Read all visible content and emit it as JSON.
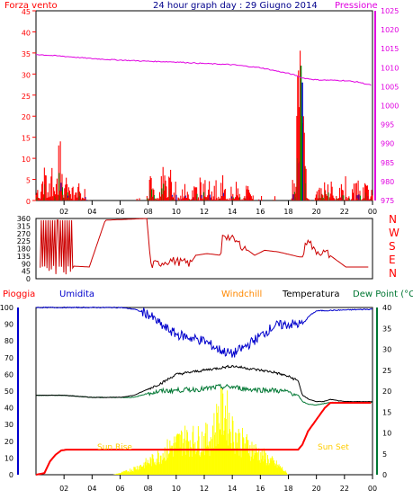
{
  "chart_data": [
    {
      "type": "line",
      "title": "24 hour graph day : 29 Giugno 2014",
      "ylabel_left": "Forza vento",
      "ylabel_right": "Pressione",
      "ylim_left": [
        0,
        45
      ],
      "yticks_left": [
        "0",
        "5",
        "10",
        "15",
        "20",
        "25",
        "30",
        "35",
        "40",
        "45"
      ],
      "ylim_right": [
        975,
        1025
      ],
      "yticks_right": [
        "975",
        "980",
        "985",
        "990",
        "995",
        "1000",
        "1005",
        "1010",
        "1015",
        "1020",
        "1025"
      ],
      "xticks": [
        "02",
        "04",
        "06",
        "08",
        "10",
        "12",
        "14",
        "16",
        "18",
        "20",
        "22",
        "00"
      ],
      "colors": {
        "wind": "#ff0000",
        "gust": "#0000cc",
        "wind2": "#008800",
        "pressure": "#e000e0"
      },
      "series": [
        {
          "name": "Pressione",
          "x": [
            0,
            2,
            4,
            6,
            8,
            10,
            12,
            14,
            16,
            18,
            18.5,
            19,
            20,
            22,
            23,
            24
          ],
          "y": [
            1013.5,
            1013,
            1012.4,
            1012,
            1011.7,
            1011.5,
            1011.1,
            1010.8,
            1010,
            1008.5,
            1008,
            1007.3,
            1006.8,
            1006.6,
            1006.2,
            1005.3
          ]
        },
        {
          "name": "Forza vento",
          "x": [
            0.2,
            0.6,
            1.1,
            1.7,
            2.2,
            3,
            4.1,
            5.5,
            8.2,
            9.1,
            9.6,
            10.6,
            11.3,
            13.3,
            14.3,
            15.1,
            18.7,
            18.85,
            19.0,
            19.1,
            20.2,
            21.7,
            23.5
          ],
          "y": [
            4,
            11,
            9,
            20,
            7,
            5,
            6,
            3,
            7,
            14,
            9,
            6,
            6,
            7,
            7,
            5,
            35,
            42,
            29,
            15,
            5,
            6,
            6
          ]
        }
      ]
    },
    {
      "type": "line",
      "ylabel_right": [
        "N",
        "W",
        "S",
        "E",
        "N"
      ],
      "ylim": [
        0,
        360
      ],
      "yticks_left": [
        "0",
        "45",
        "90",
        "135",
        "180",
        "225",
        "270",
        "315",
        "360"
      ],
      "color": "#cc0000",
      "series": [
        {
          "name": "direction",
          "x": [
            0.3,
            0.9,
            1.3,
            1.8,
            2.2,
            2.7,
            3.8,
            4.9,
            5.0,
            7.9,
            8.2,
            9.6,
            11.0,
            11.4,
            12.2,
            13.2,
            13.3,
            14.3,
            15.6,
            16.3,
            17.3,
            18.8,
            19.0,
            19.4,
            19.8,
            20.8,
            22.1,
            23.8
          ],
          "y": [
            300,
            180,
            350,
            200,
            330,
            75,
            70,
            340,
            350,
            360,
            80,
            110,
            90,
            140,
            150,
            140,
            270,
            220,
            140,
            170,
            160,
            130,
            130,
            250,
            170,
            150,
            70,
            70
          ]
        }
      ]
    },
    {
      "type": "line",
      "legend": [
        "Pioggia",
        "Umidita",
        "Windchill",
        "Temperatura",
        "Dew Point (°C"
      ],
      "ylim_left": [
        0,
        100
      ],
      "yticks_left": [
        "0",
        "10",
        "20",
        "30",
        "40",
        "50",
        "60",
        "70",
        "80",
        "90",
        "100"
      ],
      "ylim_right": [
        0,
        40
      ],
      "yticks_right": [
        "0",
        "5",
        "10",
        "15",
        "20",
        "25",
        "30",
        "35",
        "40"
      ],
      "annotations": [
        "Sun Rise",
        "Sun Set"
      ],
      "colors": {
        "humidity": "#0000cc",
        "temperature": "#000000",
        "dewpoint": "#007733",
        "rain": "#ff0000",
        "solar": "#ffff00",
        "windchill": "#ff8800"
      },
      "series": [
        {
          "name": "Umidita",
          "x": [
            0,
            3,
            6,
            7,
            8,
            9,
            10,
            12,
            13,
            14,
            15,
            16,
            17,
            18,
            19,
            19.5,
            20,
            24
          ],
          "y": [
            100,
            100,
            100,
            99,
            96,
            89,
            84,
            80,
            75,
            72,
            77,
            83,
            89,
            90,
            90,
            95,
            98,
            99
          ]
        },
        {
          "name": "Temperatura",
          "x": [
            0,
            2,
            4,
            6,
            7,
            8,
            9,
            10,
            12,
            13,
            14,
            15,
            16,
            17,
            18,
            18.7,
            19,
            19.5,
            20,
            20.5,
            21,
            22,
            24
          ],
          "y": [
            19,
            19,
            18.5,
            18.5,
            19,
            20.5,
            22,
            24,
            25,
            25.5,
            26,
            25.5,
            25,
            24.5,
            23.5,
            22.5,
            19,
            18,
            17.5,
            17.5,
            18,
            17.5,
            17.5
          ]
        },
        {
          "name": "Dew Point",
          "x": [
            0,
            2,
            4,
            6,
            7,
            8,
            9,
            10,
            12,
            13,
            14,
            15,
            16,
            17,
            18,
            18.7,
            19,
            19.5,
            20,
            21,
            24
          ],
          "y": [
            19,
            19,
            18.5,
            18.5,
            18.5,
            19.5,
            20,
            20.2,
            20.5,
            21,
            21,
            20.5,
            20.3,
            20.2,
            19.8,
            19,
            17.5,
            16.8,
            16.7,
            17.3,
            17.3
          ]
        },
        {
          "name": "Pioggia",
          "x": [
            0,
            0.6,
            1,
            1.4,
            1.8,
            2.2,
            3,
            15,
            18.7,
            19.0,
            19.4,
            20.6,
            21.0,
            24
          ],
          "y": [
            0,
            1,
            8,
            12,
            14.5,
            15,
            15,
            15,
            15,
            18,
            26,
            40,
            43,
            43
          ]
        },
        {
          "name": "solar",
          "x": [
            5.5,
            6.5,
            7.5,
            8.5,
            9.5,
            10.5,
            11.5,
            12.5,
            13,
            13.5,
            14,
            14.5,
            15.5,
            16.5,
            17.5,
            18
          ],
          "y": [
            0,
            3,
            8,
            14,
            23,
            31,
            30,
            32,
            50,
            56,
            38,
            30,
            22,
            14,
            6,
            0
          ]
        }
      ]
    }
  ]
}
